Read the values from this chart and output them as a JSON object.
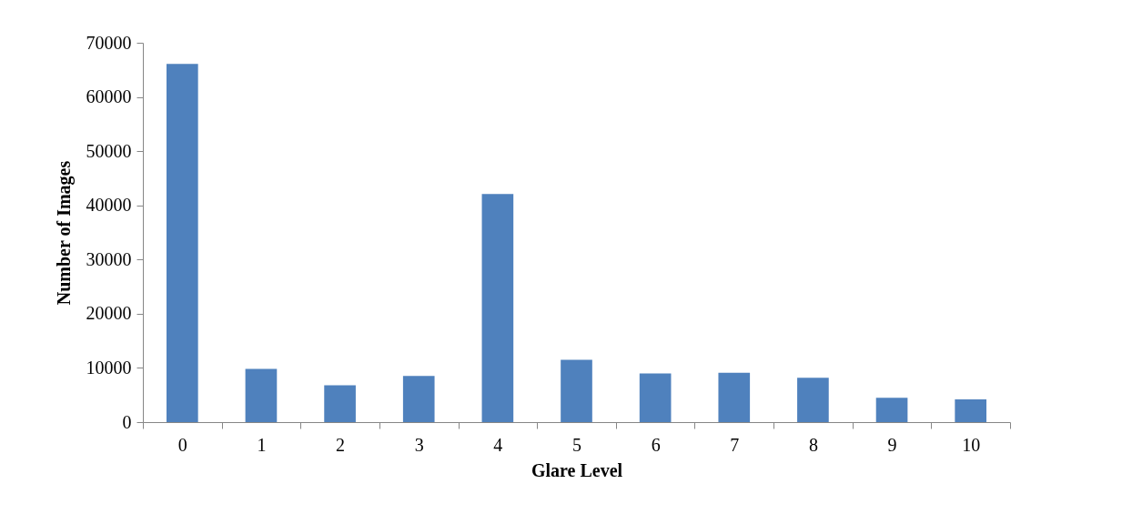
{
  "chart_data": {
    "type": "bar",
    "xlabel": "Glare Level",
    "ylabel": "Number of Images",
    "categories": [
      "0",
      "1",
      "2",
      "3",
      "4",
      "5",
      "6",
      "7",
      "8",
      "9",
      "10"
    ],
    "values": [
      66100,
      9800,
      6800,
      8500,
      42100,
      11500,
      9000,
      9100,
      8200,
      4500,
      4200
    ],
    "color": "#4f81bd",
    "ylim": [
      0,
      70000
    ],
    "yticks": [
      0,
      10000,
      20000,
      30000,
      40000,
      50000,
      60000,
      70000
    ],
    "grid": false
  }
}
